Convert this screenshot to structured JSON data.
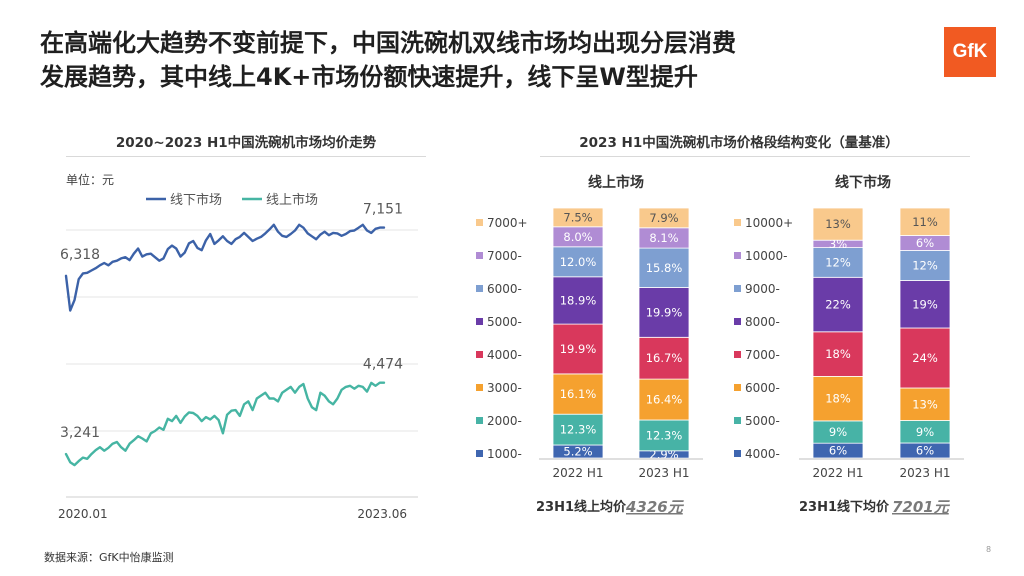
{
  "slide": {
    "title_line1": "在高端化大趋势不变前提下，中国洗碗机双线市场均出现分层消费",
    "title_line2": "发展趋势，其中线上4K+市场份额快速提升，线下呈W型提升",
    "logo": "GfK",
    "source": "数据来源：GfK中怡康监测",
    "page_number": "8",
    "colors": {
      "offline": "#3c62a8",
      "online": "#46b5a3",
      "logo_bg": "#f15a22"
    }
  },
  "chart_data": [
    {
      "type": "line",
      "title": "2020~2023 H1中国洗碗机市场均价走势",
      "unit_label": "单位：元",
      "x_start_label": "2020.01",
      "x_end_label": "2023.06",
      "grid": true,
      "legend_position": "top",
      "series": [
        {
          "name": "线下市场",
          "color": "#3c62a8",
          "start_label": "6,318",
          "end_label": "7,151",
          "values": [
            6318,
            5720,
            5900,
            6260,
            6360,
            6370,
            6410,
            6450,
            6500,
            6540,
            6500,
            6560,
            6580,
            6620,
            6640,
            6590,
            6700,
            6790,
            6650,
            6690,
            6700,
            6640,
            6580,
            6620,
            6780,
            6840,
            6790,
            6650,
            6720,
            6880,
            6920,
            6800,
            6760,
            6930,
            7040,
            6870,
            6930,
            7000,
            6920,
            6870,
            6950,
            6990,
            7060,
            6990,
            6920,
            6960,
            6990,
            7050,
            7120,
            7200,
            7080,
            7010,
            6990,
            7040,
            7100,
            7200,
            7150,
            7050,
            7000,
            6950,
            7030,
            7080,
            7020,
            7060,
            7050,
            7010,
            7040,
            7090,
            7100,
            7150,
            7200,
            7100,
            7060,
            7130,
            7151,
            7151
          ]
        },
        {
          "name": "线上市场",
          "color": "#46b5a3",
          "start_label": "3,241",
          "end_label": "4,474",
          "values": [
            3241,
            3100,
            3050,
            3120,
            3180,
            3160,
            3240,
            3310,
            3360,
            3300,
            3350,
            3420,
            3450,
            3360,
            3300,
            3420,
            3480,
            3550,
            3510,
            3460,
            3600,
            3640,
            3700,
            3660,
            3850,
            3810,
            3900,
            3780,
            3890,
            3960,
            3950,
            3900,
            3810,
            3880,
            3840,
            3900,
            3830,
            3600,
            3920,
            3990,
            4000,
            3900,
            4100,
            4150,
            4000,
            4200,
            4250,
            4300,
            4200,
            4200,
            4150,
            4300,
            4350,
            4400,
            4300,
            4400,
            4450,
            4200,
            4050,
            4000,
            4300,
            4250,
            4150,
            4100,
            4200,
            4350,
            4400,
            4420,
            4370,
            4420,
            4400,
            4320,
            4470,
            4420,
            4474,
            4474
          ]
        }
      ],
      "ylim": [
        2500,
        7800
      ]
    },
    {
      "type": "bar",
      "stacked": true,
      "title": "2023 H1中国洗碗机市场价格段结构变化（量基准）",
      "panels": [
        {
          "name": "线上市场",
          "categories": [
            "2022 H1",
            "2023 H1"
          ],
          "segments": [
            {
              "name": "1000-",
              "color": "#3f66b0",
              "values": [
                5.2,
                2.9
              ],
              "labels": [
                "5.2%",
                "2.9%"
              ]
            },
            {
              "name": "2000-",
              "color": "#47b3a6",
              "values": [
                12.3,
                12.3
              ],
              "labels": [
                "12.3%",
                "12.3%"
              ]
            },
            {
              "name": "3000-",
              "color": "#f5a12f",
              "values": [
                16.1,
                16.4
              ],
              "labels": [
                "16.1%",
                "16.4%"
              ]
            },
            {
              "name": "4000-",
              "color": "#d9385c",
              "values": [
                19.9,
                16.7
              ],
              "labels": [
                "19.9%",
                "16.7%"
              ]
            },
            {
              "name": "5000-",
              "color": "#6a3ca8",
              "values": [
                18.9,
                19.9
              ],
              "labels": [
                "18.9%",
                "19.9%"
              ]
            },
            {
              "name": "6000-",
              "color": "#7e9fd1",
              "values": [
                12.0,
                15.8
              ],
              "labels": [
                "12.0%",
                "15.8%"
              ]
            },
            {
              "name": "7000-",
              "color": "#b08cd4",
              "values": [
                8.0,
                8.1
              ],
              "labels": [
                "8.0%",
                "8.1%"
              ]
            },
            {
              "name": "7000+",
              "color": "#f9c98c",
              "values": [
                7.5,
                7.9
              ],
              "labels": [
                "7.5%",
                "7.9%"
              ]
            }
          ],
          "avg_label": "23H1线上均价",
          "avg_value": "4326元"
        },
        {
          "name": "线下市场",
          "categories": [
            "2022 H1",
            "2023 H1"
          ],
          "segments": [
            {
              "name": "4000-",
              "color": "#3f66b0",
              "values": [
                6,
                6
              ],
              "labels": [
                "6%",
                "6%"
              ]
            },
            {
              "name": "5000-",
              "color": "#47b3a6",
              "values": [
                9,
                9
              ],
              "labels": [
                "9%",
                "9%"
              ]
            },
            {
              "name": "6000-",
              "color": "#f5a12f",
              "values": [
                18,
                13
              ],
              "labels": [
                "18%",
                "13%"
              ]
            },
            {
              "name": "7000-",
              "color": "#d9385c",
              "values": [
                18,
                24
              ],
              "labels": [
                "18%",
                "24%"
              ]
            },
            {
              "name": "8000-",
              "color": "#6a3ca8",
              "values": [
                22,
                19
              ],
              "labels": [
                "22%",
                "19%"
              ]
            },
            {
              "name": "9000-",
              "color": "#7e9fd1",
              "values": [
                12,
                12
              ],
              "labels": [
                "12%",
                "12%"
              ]
            },
            {
              "name": "10000-",
              "color": "#b08cd4",
              "values": [
                3,
                6
              ],
              "labels": [
                "3%",
                "6%"
              ]
            },
            {
              "name": "10000+",
              "color": "#f9c98c",
              "values": [
                13,
                11
              ],
              "labels": [
                "13%",
                "11%"
              ]
            }
          ],
          "avg_label": "23H1线下均价",
          "avg_value": "7201元"
        }
      ]
    }
  ]
}
